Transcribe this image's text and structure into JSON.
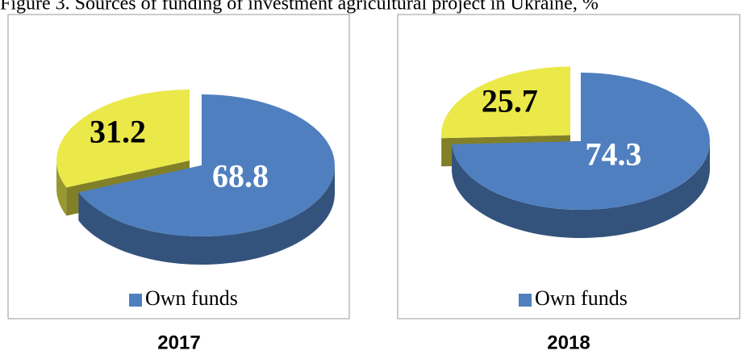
{
  "title": "Figure 3. Sources of funding of investment agricultural project in Ukraine, %",
  "chart_data": [
    {
      "type": "pie",
      "caption": "2017",
      "categories": [
        "Own funds",
        null
      ],
      "values": [
        68.8,
        31.2
      ],
      "colors": [
        "#4f7fbf",
        "#ebe84a"
      ],
      "legend": "bottom"
    },
    {
      "type": "pie",
      "caption": "2018",
      "categories": [
        "Own funds",
        null
      ],
      "values": [
        74.3,
        25.7
      ],
      "colors": [
        "#4f7fbf",
        "#ebe84a"
      ],
      "legend": "bottom"
    }
  ]
}
